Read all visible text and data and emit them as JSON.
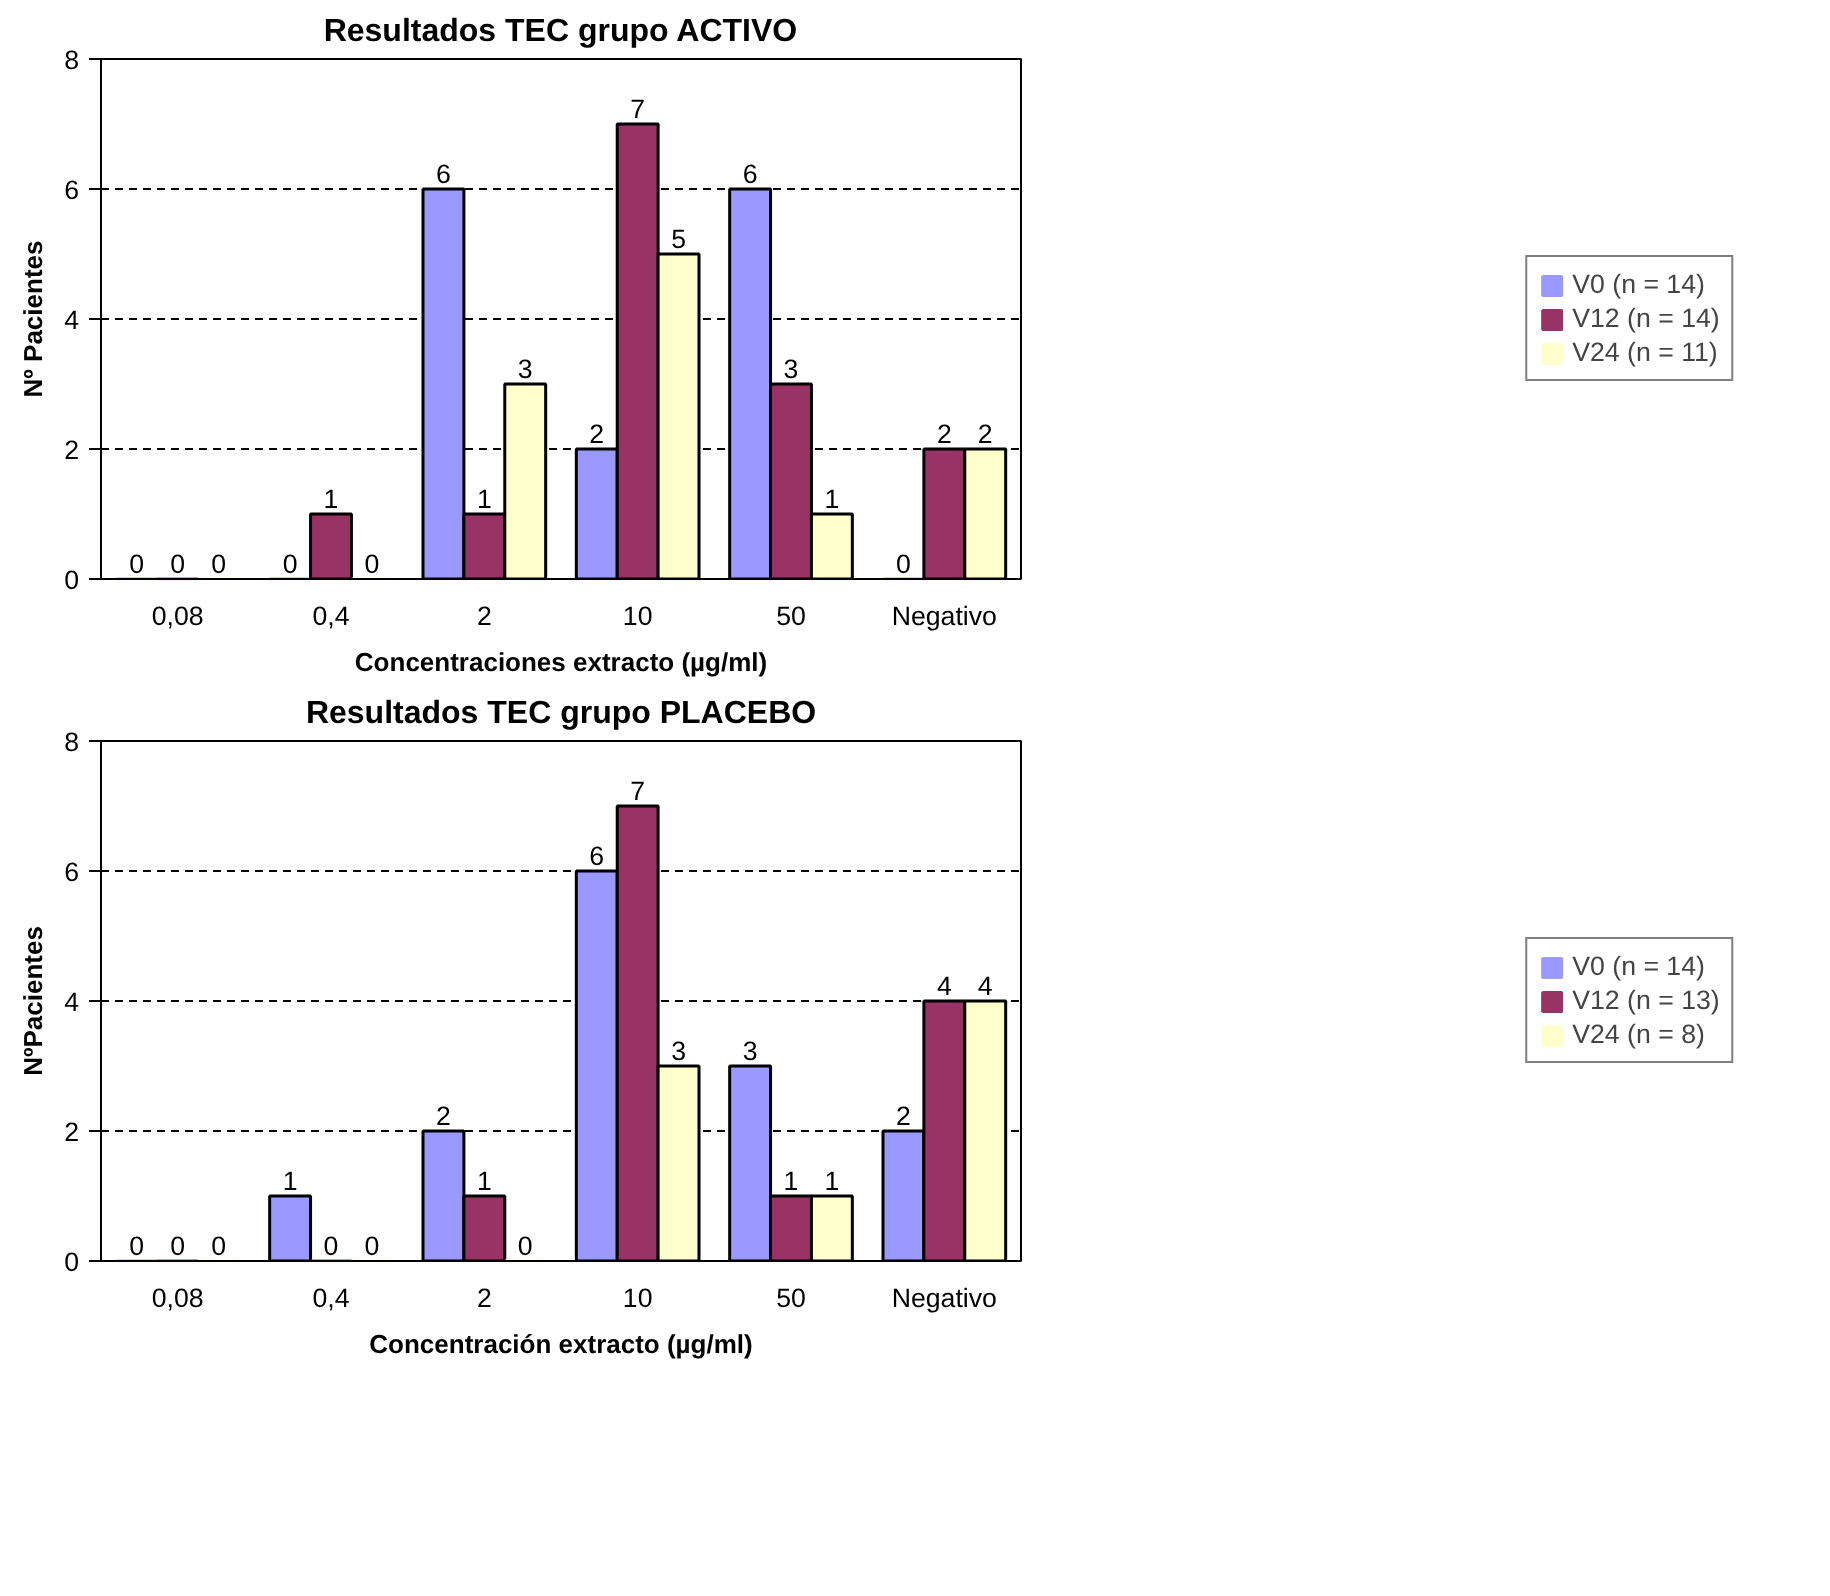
{
  "chart_data": [
    {
      "type": "bar",
      "title": "Resultados TEC grupo ACTIVO",
      "xlabel": "Concentraciones extracto (µg/ml)",
      "ylabel": "Nº Pacientes",
      "categories": [
        "0,08",
        "0,4",
        "2",
        "10",
        "50",
        "Negativo"
      ],
      "ylim": [
        0,
        8
      ],
      "yticks": [
        0,
        2,
        4,
        6,
        8
      ],
      "grid": "y",
      "legend": "right",
      "data_labels": true,
      "series": [
        {
          "name": "V0 (n = 14)",
          "color": "#9999ff",
          "values": [
            0,
            0,
            6,
            2,
            6,
            0
          ]
        },
        {
          "name": "V12 (n = 14)",
          "color": "#993366",
          "values": [
            0,
            1,
            1,
            7,
            3,
            2
          ]
        },
        {
          "name": "V24 (n = 11)",
          "color": "#ffffcc",
          "values": [
            0,
            0,
            3,
            5,
            1,
            2
          ]
        }
      ]
    },
    {
      "type": "bar",
      "title": "Resultados TEC grupo PLACEBO",
      "xlabel": "Concentración extracto (µg/ml)",
      "ylabel": "NºPacientes",
      "categories": [
        "0,08",
        "0,4",
        "2",
        "10",
        "50",
        "Negativo"
      ],
      "ylim": [
        0,
        8
      ],
      "yticks": [
        0,
        2,
        4,
        6,
        8
      ],
      "grid": "y",
      "legend": "right",
      "data_labels": true,
      "series": [
        {
          "name": "V0 (n = 14)",
          "color": "#9999ff",
          "values": [
            0,
            1,
            2,
            6,
            3,
            2
          ]
        },
        {
          "name": "V12 (n = 13)",
          "color": "#993366",
          "values": [
            0,
            0,
            1,
            7,
            1,
            4
          ]
        },
        {
          "name": "V24 (n = 8)",
          "color": "#ffffcc",
          "values": [
            0,
            0,
            0,
            3,
            1,
            4
          ]
        }
      ]
    }
  ]
}
